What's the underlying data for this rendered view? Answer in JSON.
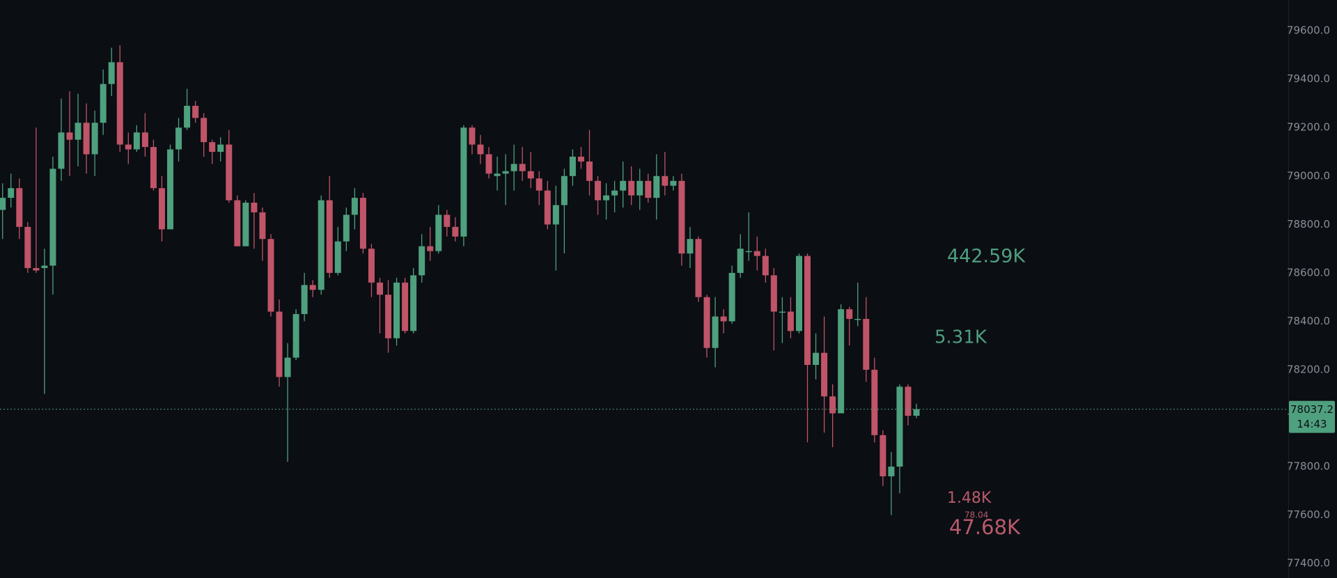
{
  "chart_data": {
    "type": "candlestick",
    "up_color": "#4fa07e",
    "down_color": "#c05468",
    "open": [
      78860,
      78910,
      78950,
      78790,
      78620,
      78620,
      78630,
      79030,
      79180,
      79150,
      79220,
      79090,
      79220,
      79380,
      79470,
      79130,
      79110,
      79180,
      79120,
      78950,
      78780,
      79110,
      79200,
      79290,
      79240,
      79140,
      79100,
      79130,
      78900,
      78710,
      78890,
      78850,
      78740,
      78440,
      78170,
      78250,
      78430,
      78550,
      78530,
      78900,
      78600,
      78730,
      78840,
      78910,
      78700,
      78560,
      78510,
      78330,
      78560,
      78360,
      78590,
      78710,
      78690,
      78840,
      78790,
      78750,
      79200,
      79130,
      79090,
      79000,
      79010,
      79020,
      79050,
      79020,
      78990,
      78940,
      78800,
      78880,
      79000,
      79080,
      79060,
      78980,
      78900,
      78920,
      78940,
      78980,
      78920,
      78980,
      78910,
      79000,
      78960,
      78980,
      78680,
      78740,
      78500,
      78290,
      78420,
      78400,
      78600,
      78690,
      78690,
      78670,
      78590,
      78440,
      78440,
      78360,
      78670,
      78220,
      78270,
      78090,
      78020,
      78450,
      78410,
      78410,
      78200,
      77930,
      77760,
      77800,
      78130,
      78010
    ],
    "high": [
      78970,
      79010,
      78990,
      78810,
      79200,
      78700,
      79080,
      79320,
      79350,
      79340,
      79300,
      79270,
      79440,
      79530,
      79540,
      79180,
      79210,
      79260,
      79150,
      79000,
      79130,
      79240,
      79360,
      79310,
      79260,
      79150,
      79160,
      79190,
      78920,
      78900,
      78930,
      78870,
      78760,
      78490,
      78310,
      78450,
      78600,
      78570,
      78920,
      79000,
      78790,
      78870,
      78950,
      78930,
      78720,
      78580,
      78570,
      78580,
      78580,
      78620,
      78760,
      78790,
      78880,
      78860,
      78830,
      79210,
      79210,
      79170,
      79120,
      79080,
      79090,
      79130,
      79120,
      79100,
      79020,
      78980,
      78960,
      79030,
      79110,
      79120,
      79190,
      79000,
      78970,
      78980,
      79060,
      79040,
      79030,
      79010,
      79090,
      79100,
      79000,
      79010,
      78790,
      78750,
      78510,
      78500,
      78450,
      78630,
      78760,
      78850,
      78750,
      78700,
      78620,
      78500,
      78500,
      78680,
      78680,
      78350,
      78420,
      78140,
      78470,
      78460,
      78560,
      78500,
      78250,
      77950,
      77860,
      78140,
      78140,
      78060
    ],
    "low": [
      78740,
      78870,
      78740,
      78600,
      78600,
      78100,
      78510,
      78980,
      79000,
      79040,
      79010,
      79000,
      79170,
      79330,
      79100,
      79050,
      79100,
      79080,
      78940,
      78730,
      78780,
      79060,
      79190,
      79220,
      79080,
      79050,
      79060,
      78890,
      78710,
      78710,
      78700,
      78650,
      78420,
      78130,
      77820,
      78240,
      78400,
      78500,
      78510,
      78580,
      78590,
      78690,
      78780,
      78680,
      78500,
      78350,
      78270,
      78300,
      78350,
      78350,
      78560,
      78650,
      78680,
      78750,
      78730,
      78710,
      79090,
      79050,
      78990,
      78940,
      78880,
      78940,
      78980,
      78950,
      78880,
      78780,
      78610,
      78680,
      78960,
      79030,
      78920,
      78840,
      78820,
      78850,
      78870,
      78880,
      78860,
      78890,
      78820,
      78920,
      78940,
      78630,
      78620,
      78480,
      78250,
      78210,
      78350,
      78390,
      78580,
      78650,
      78610,
      78560,
      78280,
      78310,
      78330,
      78350,
      77900,
      78160,
      77940,
      77880,
      78020,
      78300,
      78380,
      78150,
      77900,
      77720,
      77600,
      77690,
      77970,
      78000
    ],
    "close": [
      78910,
      78950,
      78790,
      78620,
      78610,
      78630,
      79030,
      79180,
      79150,
      79220,
      79090,
      79220,
      79380,
      79470,
      79130,
      79110,
      79180,
      79120,
      78950,
      78780,
      79110,
      79200,
      79290,
      79240,
      79140,
      79100,
      79130,
      78900,
      78710,
      78890,
      78850,
      78740,
      78440,
      78170,
      78250,
      78430,
      78550,
      78530,
      78900,
      78600,
      78730,
      78840,
      78910,
      78700,
      78560,
      78510,
      78330,
      78560,
      78360,
      78590,
      78710,
      78690,
      78840,
      78790,
      78750,
      79200,
      79130,
      79090,
      79010,
      79010,
      79020,
      79050,
      79020,
      78990,
      78940,
      78800,
      78880,
      79000,
      79080,
      79060,
      78980,
      78900,
      78920,
      78940,
      78980,
      78920,
      78980,
      78910,
      79000,
      78960,
      78980,
      78680,
      78740,
      78500,
      78290,
      78420,
      78400,
      78600,
      78700,
      78690,
      78670,
      78590,
      78440,
      78440,
      78360,
      78670,
      78220,
      78270,
      78090,
      78020,
      78450,
      78410,
      78410,
      78200,
      77930,
      77760,
      77800,
      78130,
      78010,
      78037.2
    ],
    "ylim": [
      77340,
      79727
    ],
    "yticks": [
      {
        "value": 77400,
        "label": "77400.0"
      },
      {
        "value": 77600,
        "label": "77600.0"
      },
      {
        "value": 77800,
        "label": "77800.0"
      },
      {
        "value": 78000,
        "label": "78000.0"
      },
      {
        "value": 78200,
        "label": "78200.0"
      },
      {
        "value": 78400,
        "label": "78400.0"
      },
      {
        "value": 78600,
        "label": "78600.0"
      },
      {
        "value": 78800,
        "label": "78800.0"
      },
      {
        "value": 79000,
        "label": "79000.0"
      },
      {
        "value": 79200,
        "label": "79200.0"
      },
      {
        "value": 79400,
        "label": "79400.0"
      },
      {
        "value": 79600,
        "label": "79600.0"
      }
    ],
    "last_price": 78037.2,
    "countdown": "14:43",
    "annotations": [
      {
        "text": "442.59K",
        "color": "#4f9e7f"
      },
      {
        "text": "5.31K",
        "color": "#4f9e7f"
      },
      {
        "text": "1.48K",
        "color": "#b85a6c"
      },
      {
        "text": "78.04",
        "color": "#b85a6c"
      },
      {
        "text": "47.68K",
        "color": "#b85a6c"
      }
    ]
  }
}
